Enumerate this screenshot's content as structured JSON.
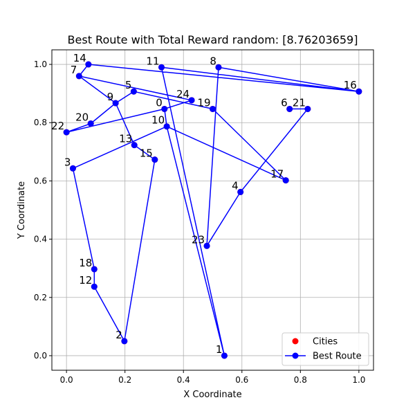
{
  "chart_data": {
    "type": "line",
    "title": "Best Route with Total Reward random: [8.76203659]",
    "xlabel": "X Coordinate",
    "ylabel": "Y Coordinate",
    "xlim": [
      -0.05,
      1.05
    ],
    "ylim": [
      -0.05,
      1.05
    ],
    "x_ticks": [
      0.0,
      0.2,
      0.4,
      0.6,
      0.8,
      1.0
    ],
    "y_ticks": [
      0.0,
      0.2,
      0.4,
      0.6,
      0.8,
      1.0
    ],
    "x_tick_labels": [
      "0.0",
      "0.2",
      "0.4",
      "0.6",
      "0.8",
      "1.0"
    ],
    "y_tick_labels": [
      "0.0",
      "0.2",
      "0.4",
      "0.6",
      "0.8",
      "1.0"
    ],
    "grid": true,
    "legend_position": "lower-right",
    "legend": [
      {
        "label": "Cities",
        "color": "#ff0000",
        "marker": "dot"
      },
      {
        "label": "Best Route",
        "color": "#0000ff",
        "marker": "line-dot"
      }
    ],
    "cities": [
      {
        "id": "0",
        "x": 0.335,
        "y": 0.847
      },
      {
        "id": "1",
        "x": 0.54,
        "y": 0.0
      },
      {
        "id": "2",
        "x": 0.198,
        "y": 0.05
      },
      {
        "id": "3",
        "x": 0.022,
        "y": 0.643
      },
      {
        "id": "4",
        "x": 0.595,
        "y": 0.562
      },
      {
        "id": "5",
        "x": 0.23,
        "y": 0.907
      },
      {
        "id": "6",
        "x": 0.763,
        "y": 0.847
      },
      {
        "id": "7",
        "x": 0.043,
        "y": 0.96
      },
      {
        "id": "8",
        "x": 0.52,
        "y": 0.99
      },
      {
        "id": "9",
        "x": 0.168,
        "y": 0.867
      },
      {
        "id": "10",
        "x": 0.343,
        "y": 0.787
      },
      {
        "id": "11",
        "x": 0.325,
        "y": 0.99
      },
      {
        "id": "12",
        "x": 0.095,
        "y": 0.237
      },
      {
        "id": "13",
        "x": 0.232,
        "y": 0.723
      },
      {
        "id": "14",
        "x": 0.075,
        "y": 1.0
      },
      {
        "id": "15",
        "x": 0.302,
        "y": 0.673
      },
      {
        "id": "16",
        "x": 1.0,
        "y": 0.907
      },
      {
        "id": "17",
        "x": 0.75,
        "y": 0.602
      },
      {
        "id": "18",
        "x": 0.095,
        "y": 0.297
      },
      {
        "id": "19",
        "x": 0.5,
        "y": 0.847
      },
      {
        "id": "20",
        "x": 0.083,
        "y": 0.797
      },
      {
        "id": "21",
        "x": 0.825,
        "y": 0.847
      },
      {
        "id": "22",
        "x": 0.0,
        "y": 0.767
      },
      {
        "id": "23",
        "x": 0.48,
        "y": 0.377
      },
      {
        "id": "24",
        "x": 0.428,
        "y": 0.877
      }
    ],
    "route": [
      "0",
      "10",
      "17",
      "19",
      "5",
      "9",
      "13",
      "15",
      "2",
      "12",
      "18",
      "3",
      "10",
      "1",
      "11",
      "16",
      "14",
      "7",
      "24",
      "0",
      "22",
      "20",
      "9",
      "7",
      "14",
      "16",
      "8",
      "23",
      "4",
      "21",
      "6"
    ],
    "colors": {
      "route": "#0000ff",
      "cities": "#ff0000",
      "grid": "#b0b0b0"
    }
  }
}
